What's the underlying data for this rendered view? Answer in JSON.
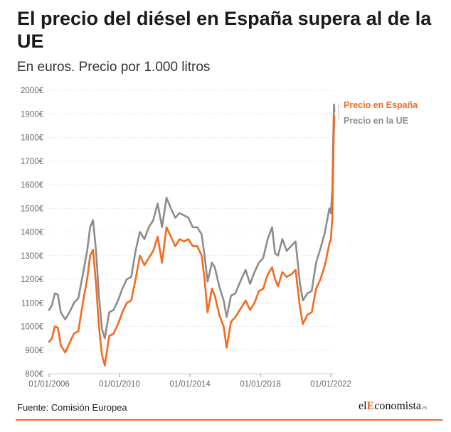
{
  "title": "El precio del diésel en España supera al de la UE",
  "subtitle": "En euros. Precio por 1.000 litros",
  "footer": {
    "source": "Fuente: Comisión Europea",
    "brand_prefix": "el",
    "brand_highlight": "E",
    "brand_suffix": "conomista",
    "brand_tld": ".es"
  },
  "colors": {
    "spain": "#f36a21",
    "eu": "#8c8c8c",
    "grid": "#dedede"
  },
  "chart_data": {
    "type": "line",
    "title": "El precio del diésel en España supera al de la UE",
    "subtitle": "En euros. Precio por 1.000 litros",
    "ylim": [
      800,
      2000
    ],
    "y_ticks": [
      800,
      900,
      1000,
      1100,
      1200,
      1300,
      1400,
      1500,
      1600,
      1700,
      1800,
      1900,
      2000
    ],
    "y_tick_labels": [
      "800€",
      "900€",
      "1000€",
      "1100€",
      "1200€",
      "1300€",
      "1400€",
      "1500€",
      "1600€",
      "1700€",
      "1800€",
      "1900€",
      "2000€"
    ],
    "x_tick_labels": [
      "01/01/2006",
      "01/01/2010",
      "01/01/2014",
      "01/01/2018",
      "01/01/2022"
    ],
    "x_range": [
      "2006-01-01",
      "2022-03-15"
    ],
    "grid": true,
    "legend": "top-right",
    "series": [
      {
        "name": "Precio en España",
        "color": "#f36a21",
        "points": [
          [
            "2006-01-01",
            935
          ],
          [
            "2006-03-01",
            950
          ],
          [
            "2006-05-01",
            1000
          ],
          [
            "2006-07-01",
            995
          ],
          [
            "2006-09-01",
            920
          ],
          [
            "2006-12-01",
            890
          ],
          [
            "2007-03-01",
            930
          ],
          [
            "2007-06-01",
            970
          ],
          [
            "2007-09-01",
            980
          ],
          [
            "2007-12-01",
            1100
          ],
          [
            "2008-03-01",
            1200
          ],
          [
            "2008-05-01",
            1300
          ],
          [
            "2008-07-01",
            1325
          ],
          [
            "2008-09-01",
            1180
          ],
          [
            "2008-11-01",
            1000
          ],
          [
            "2009-01-01",
            880
          ],
          [
            "2009-03-01",
            835
          ],
          [
            "2009-06-01",
            960
          ],
          [
            "2009-09-01",
            970
          ],
          [
            "2009-12-01",
            1010
          ],
          [
            "2010-03-01",
            1060
          ],
          [
            "2010-06-01",
            1100
          ],
          [
            "2010-09-01",
            1110
          ],
          [
            "2010-12-01",
            1200
          ],
          [
            "2011-03-01",
            1300
          ],
          [
            "2011-06-01",
            1260
          ],
          [
            "2011-09-01",
            1290
          ],
          [
            "2011-12-01",
            1320
          ],
          [
            "2012-03-01",
            1380
          ],
          [
            "2012-06-01",
            1270
          ],
          [
            "2012-09-01",
            1420
          ],
          [
            "2012-12-01",
            1380
          ],
          [
            "2013-03-01",
            1340
          ],
          [
            "2013-06-01",
            1370
          ],
          [
            "2013-09-01",
            1360
          ],
          [
            "2013-12-01",
            1370
          ],
          [
            "2014-03-01",
            1340
          ],
          [
            "2014-06-01",
            1340
          ],
          [
            "2014-09-01",
            1300
          ],
          [
            "2014-11-01",
            1200
          ],
          [
            "2015-01-01",
            1060
          ],
          [
            "2015-04-01",
            1160
          ],
          [
            "2015-06-01",
            1130
          ],
          [
            "2015-09-01",
            1050
          ],
          [
            "2015-12-01",
            1000
          ],
          [
            "2016-02-01",
            910
          ],
          [
            "2016-05-01",
            1020
          ],
          [
            "2016-08-01",
            1040
          ],
          [
            "2016-12-01",
            1080
          ],
          [
            "2017-03-01",
            1110
          ],
          [
            "2017-06-01",
            1070
          ],
          [
            "2017-09-01",
            1100
          ],
          [
            "2017-12-01",
            1150
          ],
          [
            "2018-03-01",
            1160
          ],
          [
            "2018-06-01",
            1220
          ],
          [
            "2018-09-01",
            1250
          ],
          [
            "2018-11-01",
            1200
          ],
          [
            "2019-01-01",
            1170
          ],
          [
            "2019-04-01",
            1230
          ],
          [
            "2019-07-01",
            1210
          ],
          [
            "2019-10-01",
            1220
          ],
          [
            "2020-01-01",
            1240
          ],
          [
            "2020-04-01",
            1080
          ],
          [
            "2020-06-01",
            1010
          ],
          [
            "2020-09-01",
            1050
          ],
          [
            "2020-12-01",
            1060
          ],
          [
            "2021-03-01",
            1160
          ],
          [
            "2021-06-01",
            1200
          ],
          [
            "2021-09-01",
            1260
          ],
          [
            "2021-12-01",
            1350
          ],
          [
            "2022-01-01",
            1370
          ],
          [
            "2022-02-01",
            1460
          ],
          [
            "2022-03-01",
            1800
          ],
          [
            "2022-03-15",
            1890
          ]
        ]
      },
      {
        "name": "Precio en la UE",
        "color": "#8c8c8c",
        "points": [
          [
            "2006-01-01",
            1070
          ],
          [
            "2006-03-01",
            1090
          ],
          [
            "2006-05-01",
            1140
          ],
          [
            "2006-07-01",
            1135
          ],
          [
            "2006-09-01",
            1060
          ],
          [
            "2006-12-01",
            1030
          ],
          [
            "2007-03-01",
            1060
          ],
          [
            "2007-06-01",
            1100
          ],
          [
            "2007-09-01",
            1120
          ],
          [
            "2007-12-01",
            1220
          ],
          [
            "2008-03-01",
            1320
          ],
          [
            "2008-05-01",
            1420
          ],
          [
            "2008-07-01",
            1450
          ],
          [
            "2008-09-01",
            1320
          ],
          [
            "2008-11-01",
            1130
          ],
          [
            "2009-01-01",
            990
          ],
          [
            "2009-03-01",
            950
          ],
          [
            "2009-06-01",
            1060
          ],
          [
            "2009-09-01",
            1070
          ],
          [
            "2009-12-01",
            1110
          ],
          [
            "2010-03-01",
            1160
          ],
          [
            "2010-06-01",
            1200
          ],
          [
            "2010-09-01",
            1210
          ],
          [
            "2010-12-01",
            1320
          ],
          [
            "2011-03-01",
            1400
          ],
          [
            "2011-06-01",
            1370
          ],
          [
            "2011-09-01",
            1420
          ],
          [
            "2011-12-01",
            1450
          ],
          [
            "2012-03-01",
            1520
          ],
          [
            "2012-06-01",
            1420
          ],
          [
            "2012-09-01",
            1545
          ],
          [
            "2012-12-01",
            1500
          ],
          [
            "2013-03-01",
            1460
          ],
          [
            "2013-06-01",
            1480
          ],
          [
            "2013-09-01",
            1470
          ],
          [
            "2013-12-01",
            1460
          ],
          [
            "2014-03-01",
            1420
          ],
          [
            "2014-06-01",
            1420
          ],
          [
            "2014-09-01",
            1390
          ],
          [
            "2014-11-01",
            1300
          ],
          [
            "2015-01-01",
            1190
          ],
          [
            "2015-04-01",
            1270
          ],
          [
            "2015-06-01",
            1250
          ],
          [
            "2015-09-01",
            1170
          ],
          [
            "2015-12-01",
            1110
          ],
          [
            "2016-02-01",
            1040
          ],
          [
            "2016-05-01",
            1130
          ],
          [
            "2016-08-01",
            1140
          ],
          [
            "2016-12-01",
            1200
          ],
          [
            "2017-03-01",
            1240
          ],
          [
            "2017-06-01",
            1180
          ],
          [
            "2017-09-01",
            1230
          ],
          [
            "2017-12-01",
            1270
          ],
          [
            "2018-03-01",
            1290
          ],
          [
            "2018-06-01",
            1370
          ],
          [
            "2018-09-01",
            1420
          ],
          [
            "2018-11-01",
            1310
          ],
          [
            "2019-01-01",
            1300
          ],
          [
            "2019-04-01",
            1370
          ],
          [
            "2019-07-01",
            1320
          ],
          [
            "2019-10-01",
            1340
          ],
          [
            "2020-01-01",
            1360
          ],
          [
            "2020-04-01",
            1180
          ],
          [
            "2020-06-01",
            1110
          ],
          [
            "2020-09-01",
            1140
          ],
          [
            "2020-12-01",
            1150
          ],
          [
            "2021-03-01",
            1270
          ],
          [
            "2021-06-01",
            1330
          ],
          [
            "2021-09-01",
            1400
          ],
          [
            "2021-12-01",
            1500
          ],
          [
            "2022-01-01",
            1480
          ],
          [
            "2022-02-01",
            1580
          ],
          [
            "2022-03-01",
            1900
          ],
          [
            "2022-03-10",
            1940
          ],
          [
            "2022-03-15",
            1910
          ]
        ]
      }
    ]
  }
}
